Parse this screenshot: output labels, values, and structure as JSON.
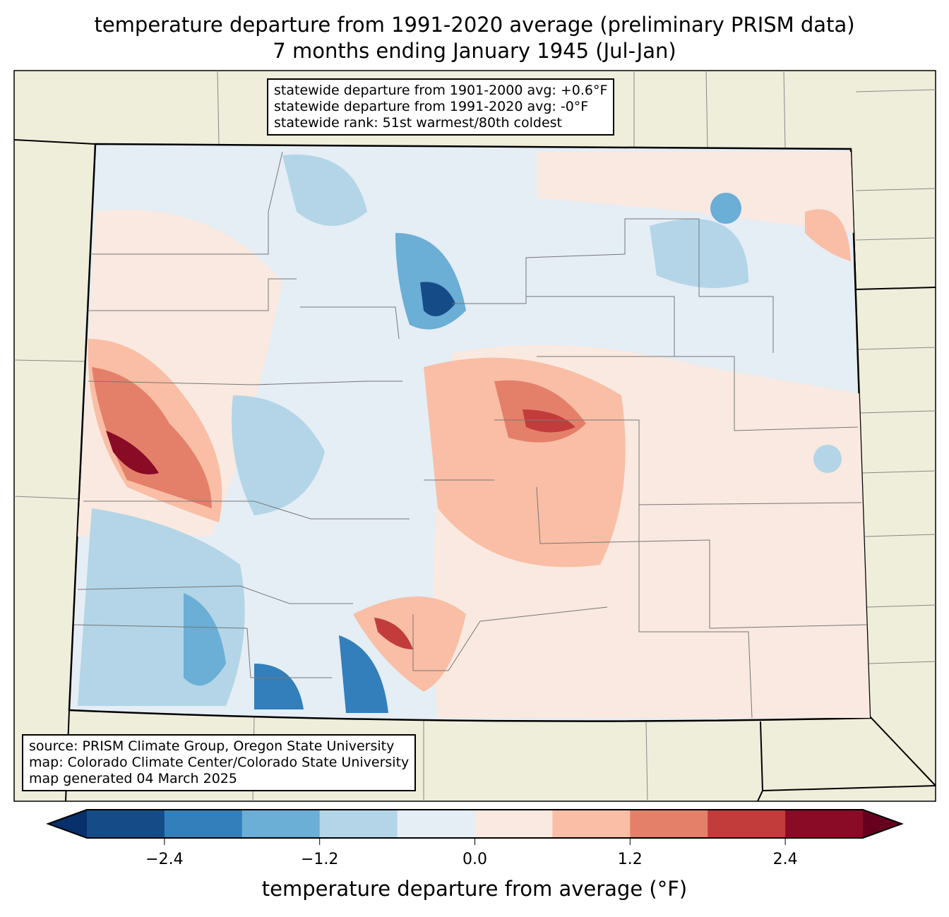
{
  "title": {
    "line1": "temperature departure from 1991-2020 average (preliminary PRISM data)",
    "line2": "7 months ending January 1945 (Jul-Jan)"
  },
  "stats": {
    "line1": "statewide departure from 1901-2000 avg: +0.6°F",
    "line2": "statewide departure from 1991-2020 avg: -0°F",
    "line3": "statewide rank: 51st warmest/80th coldest"
  },
  "source": {
    "line1": "source: PRISM Climate Group, Oregon State University",
    "line2": "map: Colorado Climate Center/Colorado State University",
    "line3": "map generated 04 March 2025"
  },
  "colorbar": {
    "label": "temperature departure from average (°F)",
    "min": -3.0,
    "max": 3.0,
    "ticks": [
      "−2.4",
      "−1.2",
      "0.0",
      "1.2",
      "2.4"
    ],
    "tick_values": [
      -2.4,
      -1.2,
      0.0,
      1.2,
      2.4
    ],
    "colors": [
      "#08306b",
      "#154c87",
      "#327fbb",
      "#6baed6",
      "#b3d5e7",
      "#e5edf5",
      "#f9e9e0",
      "#f9bea5",
      "#e4806a",
      "#c33c3c",
      "#8a0b25",
      "#67001f"
    ]
  }
}
